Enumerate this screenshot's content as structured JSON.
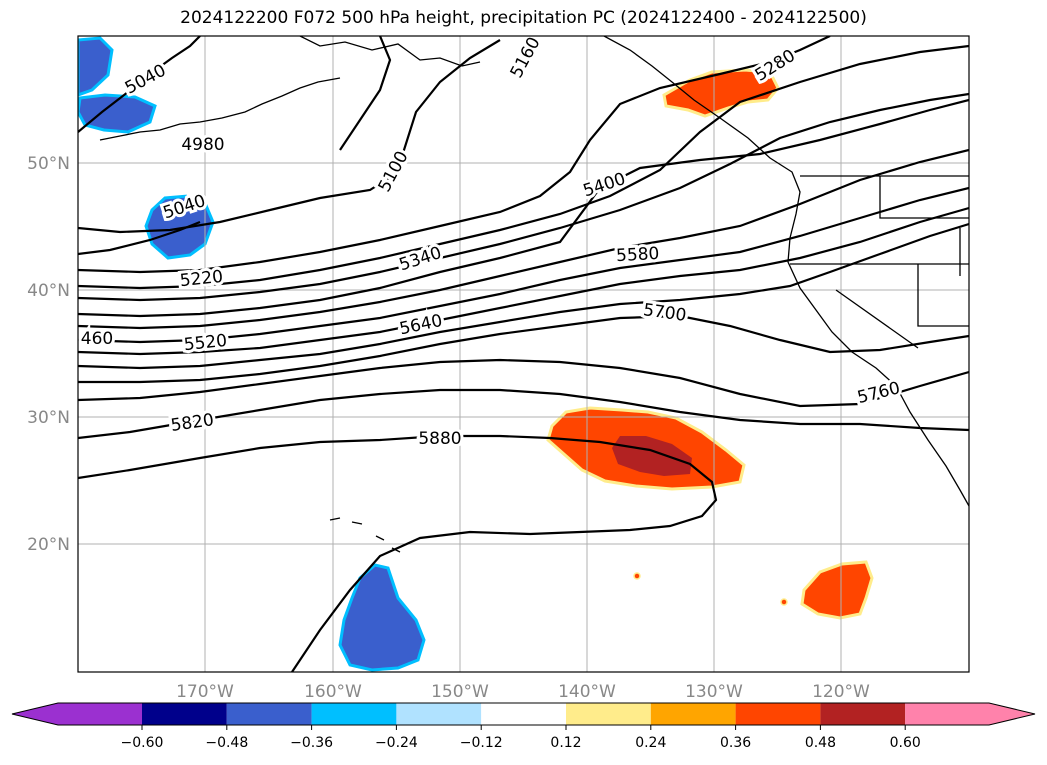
{
  "title": "2024122200 F072 500 hPa height, precipitation PC (2024122400 - 2024122500)",
  "lat_ticks": [
    "50°N",
    "40°N",
    "30°N",
    "20°N"
  ],
  "lon_ticks": [
    "170°W",
    "160°W",
    "150°W",
    "140°W",
    "130°W",
    "120°W"
  ],
  "contour_labels": [
    "5040",
    "4980",
    "5160",
    "5280",
    "5040",
    "5100",
    "5400",
    "5220",
    "5340",
    "5580",
    "460",
    "5520",
    "5640",
    "5700",
    "5760",
    "5820",
    "5880"
  ],
  "colorbar": {
    "ticks": [
      "−0.60",
      "−0.48",
      "−0.36",
      "−0.24",
      "−0.12",
      "0.12",
      "0.24",
      "0.36",
      "0.48",
      "0.60"
    ],
    "colors": [
      "#9b30d0",
      "#00008b",
      "#3a5fcd",
      "#00bfff",
      "#b0e2ff",
      "#ffffff",
      "#ffec8b",
      "#ffa500",
      "#ff4500",
      "#b22222",
      "#ff82ab"
    ]
  },
  "map_colors": {
    "neg_fill": "#3a5fcd",
    "neg_edge": "#00bfff",
    "pos_fill": "#ff4500",
    "pos_core": "#b22222",
    "pos_edge": "#ffec8b",
    "contour": "#000000",
    "grid": "#b0b0b0"
  }
}
